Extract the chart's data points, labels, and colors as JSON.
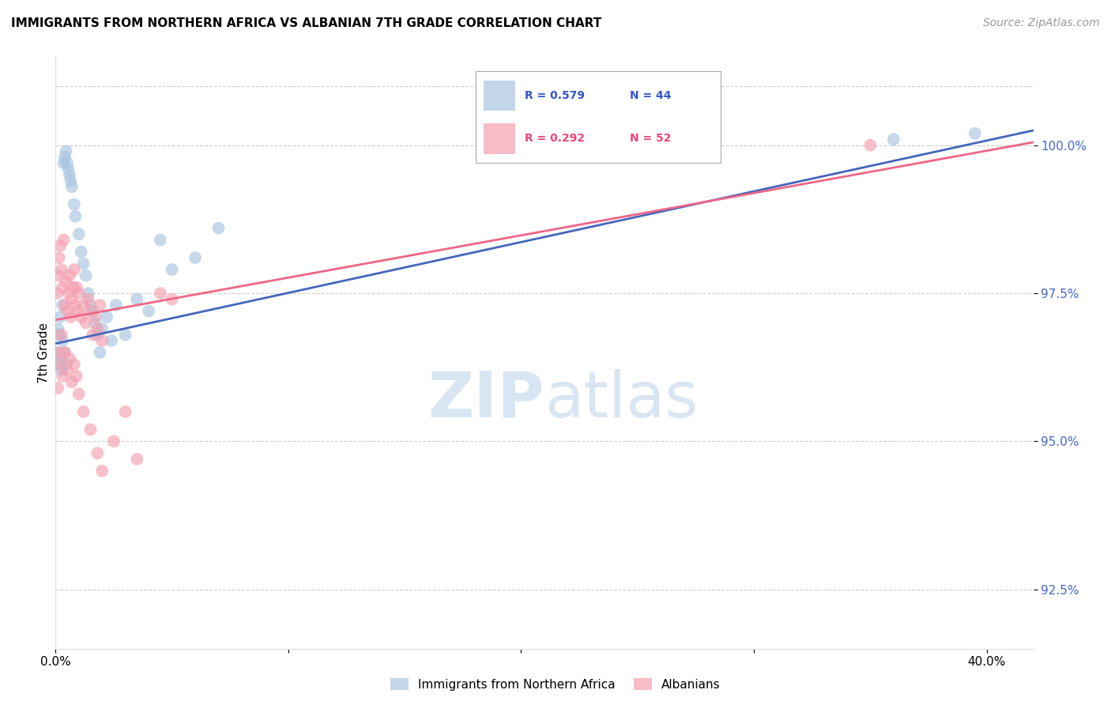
{
  "title": "IMMIGRANTS FROM NORTHERN AFRICA VS ALBANIAN 7TH GRADE CORRELATION CHART",
  "source": "Source: ZipAtlas.com",
  "ylabel": "7th Grade",
  "y_ticks": [
    92.5,
    95.0,
    97.5,
    100.0
  ],
  "y_tick_labels": [
    "92.5%",
    "95.0%",
    "97.5%",
    "100.0%"
  ],
  "x_ticks": [
    0.0,
    10.0,
    20.0,
    30.0,
    40.0
  ],
  "x_tick_labels": [
    "0.0%",
    "",
    "",
    "",
    "40.0%"
  ],
  "x_range": [
    0.0,
    42.0
  ],
  "y_range": [
    91.5,
    101.5
  ],
  "watermark_zip": "ZIP",
  "watermark_atlas": "atlas",
  "legend_blue_r": "R = 0.579",
  "legend_blue_n": "N = 44",
  "legend_pink_r": "R = 0.292",
  "legend_pink_n": "N = 52",
  "blue_color": "#A8C4E0",
  "pink_color": "#F4A0B0",
  "blue_line_color": "#4466BB",
  "pink_line_color": "#EE6688",
  "blue_label": "Immigrants from Northern Africa",
  "pink_label": "Albanians",
  "blue_scatter": [
    [
      0.1,
      96.9
    ],
    [
      0.2,
      97.1
    ],
    [
      0.3,
      97.3
    ],
    [
      0.35,
      99.7
    ],
    [
      0.4,
      99.8
    ],
    [
      0.45,
      99.9
    ],
    [
      0.5,
      99.7
    ],
    [
      0.55,
      99.6
    ],
    [
      0.6,
      99.5
    ],
    [
      0.65,
      99.4
    ],
    [
      0.7,
      99.3
    ],
    [
      0.8,
      99.0
    ],
    [
      0.85,
      98.8
    ],
    [
      1.0,
      98.5
    ],
    [
      1.1,
      98.2
    ],
    [
      1.2,
      98.0
    ],
    [
      1.3,
      97.8
    ],
    [
      1.4,
      97.5
    ],
    [
      1.5,
      97.3
    ],
    [
      1.6,
      97.2
    ],
    [
      1.7,
      97.0
    ],
    [
      1.8,
      96.8
    ],
    [
      1.9,
      96.5
    ],
    [
      2.0,
      96.9
    ],
    [
      2.2,
      97.1
    ],
    [
      2.4,
      96.7
    ],
    [
      2.6,
      97.3
    ],
    [
      3.0,
      96.8
    ],
    [
      3.5,
      97.4
    ],
    [
      4.0,
      97.2
    ],
    [
      4.5,
      98.4
    ],
    [
      5.0,
      97.9
    ],
    [
      6.0,
      98.1
    ],
    [
      7.0,
      98.6
    ],
    [
      0.05,
      96.5
    ],
    [
      0.1,
      96.3
    ],
    [
      0.15,
      96.8
    ],
    [
      0.2,
      96.4
    ],
    [
      0.25,
      96.2
    ],
    [
      0.3,
      96.7
    ],
    [
      0.4,
      96.5
    ],
    [
      0.45,
      96.3
    ],
    [
      36.0,
      100.1
    ],
    [
      39.5,
      100.2
    ]
  ],
  "pink_scatter": [
    [
      0.05,
      97.5
    ],
    [
      0.1,
      97.8
    ],
    [
      0.15,
      98.1
    ],
    [
      0.2,
      98.3
    ],
    [
      0.25,
      97.9
    ],
    [
      0.3,
      97.6
    ],
    [
      0.35,
      98.4
    ],
    [
      0.4,
      97.3
    ],
    [
      0.45,
      97.7
    ],
    [
      0.5,
      97.2
    ],
    [
      0.55,
      97.5
    ],
    [
      0.6,
      97.8
    ],
    [
      0.65,
      97.1
    ],
    [
      0.7,
      97.4
    ],
    [
      0.75,
      97.6
    ],
    [
      0.8,
      97.9
    ],
    [
      0.85,
      97.3
    ],
    [
      0.9,
      97.6
    ],
    [
      0.95,
      97.2
    ],
    [
      1.0,
      97.5
    ],
    [
      1.1,
      97.1
    ],
    [
      1.2,
      97.3
    ],
    [
      1.3,
      97.0
    ],
    [
      1.4,
      97.4
    ],
    [
      1.5,
      97.2
    ],
    [
      1.6,
      96.8
    ],
    [
      1.7,
      97.1
    ],
    [
      1.8,
      96.9
    ],
    [
      1.9,
      97.3
    ],
    [
      2.0,
      96.7
    ],
    [
      0.15,
      96.5
    ],
    [
      0.2,
      96.3
    ],
    [
      0.3,
      96.1
    ],
    [
      0.4,
      96.5
    ],
    [
      0.5,
      96.2
    ],
    [
      0.6,
      96.4
    ],
    [
      0.7,
      96.0
    ],
    [
      0.8,
      96.3
    ],
    [
      0.9,
      96.1
    ],
    [
      1.0,
      95.8
    ],
    [
      1.2,
      95.5
    ],
    [
      1.5,
      95.2
    ],
    [
      1.8,
      94.8
    ],
    [
      2.0,
      94.5
    ],
    [
      2.5,
      95.0
    ],
    [
      3.0,
      95.5
    ],
    [
      3.5,
      94.7
    ],
    [
      4.5,
      97.5
    ],
    [
      5.0,
      97.4
    ],
    [
      35.0,
      100.0
    ],
    [
      0.25,
      96.8
    ],
    [
      0.1,
      95.9
    ]
  ]
}
